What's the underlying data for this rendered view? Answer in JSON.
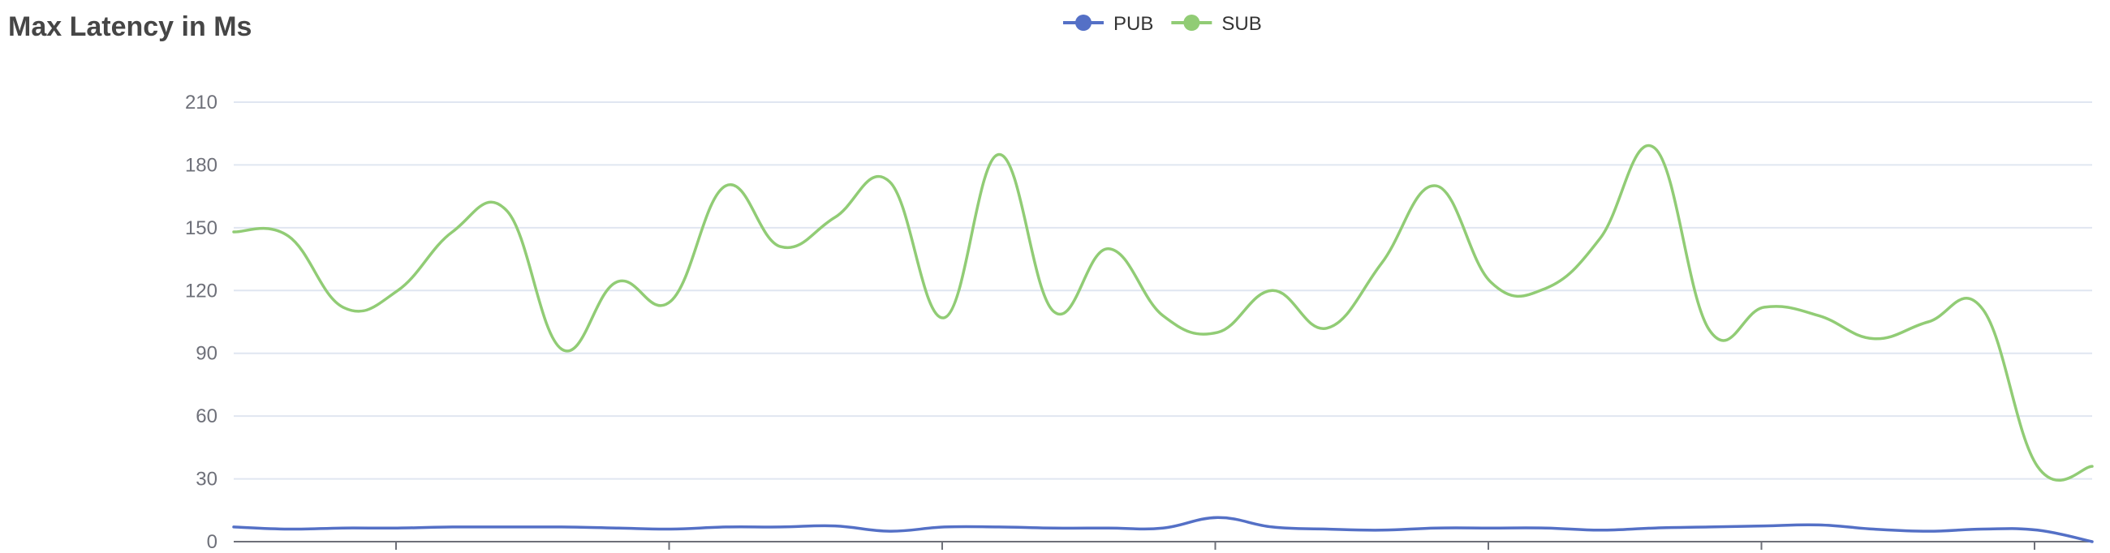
{
  "chart_data": {
    "type": "line",
    "title": "Max Latency in Ms",
    "xlabel": "",
    "ylabel": "",
    "ylim": [
      0,
      210
    ],
    "yticks": [
      "0",
      "30",
      "60",
      "90",
      "120",
      "150",
      "180",
      "210"
    ],
    "grid": true,
    "smooth": true,
    "legend_position": "top-center",
    "x": [
      0,
      1,
      2,
      3,
      4,
      5,
      6,
      7,
      8,
      9,
      10,
      11,
      12,
      13,
      14,
      15,
      16,
      17,
      18,
      19,
      20,
      21,
      22,
      23,
      24,
      25,
      26,
      27,
      28,
      29,
      30,
      31,
      32,
      33,
      34
    ],
    "series": [
      {
        "name": "PUB",
        "color": "#5470c6",
        "values": [
          7,
          6,
          6.5,
          6.5,
          7,
          7,
          7,
          6.5,
          6,
          7,
          7,
          7.5,
          5,
          7,
          7,
          6.5,
          6.5,
          6.5,
          11.5,
          7,
          6,
          5.5,
          6.5,
          6.5,
          6.5,
          5.5,
          6.5,
          7,
          7.5,
          8,
          6,
          5,
          6,
          5.5,
          0
        ]
      },
      {
        "name": "SUB",
        "color": "#91cc75",
        "values": [
          148,
          146,
          112,
          120,
          148,
          158,
          92,
          124,
          115,
          170,
          141,
          155,
          172,
          107,
          185,
          110,
          140,
          108,
          100,
          120,
          102,
          133,
          170,
          124,
          121,
          145,
          188,
          101,
          112,
          108,
          97,
          105,
          111,
          36,
          36
        ]
      }
    ]
  }
}
